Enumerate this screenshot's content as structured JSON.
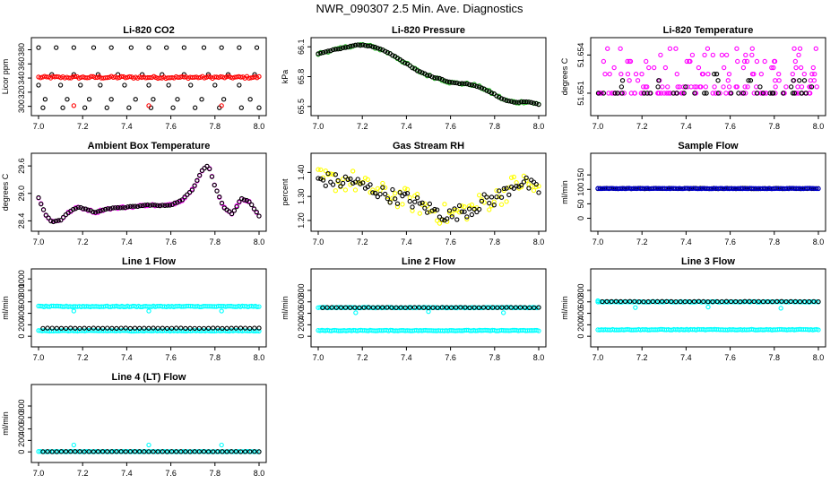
{
  "page": {
    "title": "NWR_090307  2.5 Min. Ave. Diagnostics"
  },
  "chart_data": [
    {
      "type": "scatter",
      "title": "Li-820 CO2",
      "ylabel": "Licor ppm",
      "xlim": [
        7.0,
        8.0
      ],
      "ylim": [
        297,
        387
      ],
      "xticks": [
        "7.0",
        "7.2",
        "7.4",
        "7.6",
        "7.8",
        "8.0"
      ],
      "yticks": [
        300,
        320,
        340,
        360,
        380
      ],
      "series": [
        {
          "color": "#000000",
          "style": "scatter",
          "x": [
            7.0,
            7.08,
            7.16,
            7.25,
            7.33,
            7.42,
            7.5,
            7.58,
            7.66,
            7.75,
            7.83,
            7.91,
            7.99
          ],
          "y": [
            383,
            383,
            383,
            383,
            383,
            383,
            383,
            383,
            383,
            383,
            383,
            383,
            383
          ]
        },
        {
          "color": "#000000",
          "style": "scatter",
          "x": [
            7.06,
            7.16,
            7.27,
            7.36,
            7.47,
            7.56,
            7.66,
            7.77,
            7.86,
            7.98
          ],
          "y": [
            345,
            345,
            345,
            345,
            345,
            345,
            345,
            345,
            345,
            345
          ]
        },
        {
          "color": "#000000",
          "style": "scatter",
          "x": [
            7.0,
            7.1,
            7.19,
            7.28,
            7.39,
            7.5,
            7.59,
            7.69,
            7.8,
            7.91
          ],
          "y": [
            330,
            330,
            330,
            330,
            330,
            330,
            330,
            330,
            330,
            330
          ]
        },
        {
          "color": "#000000",
          "style": "scatter",
          "x": [
            7.03,
            7.13,
            7.23,
            7.33,
            7.44,
            7.52,
            7.63,
            7.74,
            7.84,
            7.96
          ],
          "y": [
            310,
            310,
            310,
            310,
            310,
            310,
            310,
            310,
            310,
            310
          ]
        },
        {
          "color": "#000000",
          "style": "scatter",
          "x": [
            7.02,
            7.11,
            7.21,
            7.31,
            7.41,
            7.51,
            7.61,
            7.71,
            7.82,
            7.92,
            8.0
          ],
          "y": [
            298,
            298,
            298,
            298,
            298,
            298,
            298,
            298,
            298,
            298,
            298
          ]
        },
        {
          "color": "#ff0000",
          "style": "band",
          "x0": 7.0,
          "x1": 8.0,
          "y": 341,
          "spread": 1.5,
          "n": 110
        },
        {
          "color": "#ff0000",
          "style": "scatter",
          "x": [
            7.16,
            7.5,
            7.83
          ],
          "y": [
            301,
            301,
            301
          ]
        }
      ]
    },
    {
      "type": "scatter",
      "title": "Li-820 Pressure",
      "ylabel": "kPa",
      "xlim": [
        7.0,
        8.0
      ],
      "ylim": [
        65.48,
        66.12
      ],
      "xticks": [
        "7.0",
        "7.2",
        "7.4",
        "7.6",
        "7.8",
        "8.0"
      ],
      "yticks": [
        "65.5",
        "65.8",
        "66.1"
      ],
      "ytick_values": [
        65.5,
        65.8,
        66.1
      ],
      "series": [
        {
          "color": "#22bb22",
          "style": "curve",
          "spread": 0.012,
          "x": [
            7.0,
            7.05,
            7.1,
            7.15,
            7.2,
            7.25,
            7.3,
            7.35,
            7.4,
            7.45,
            7.5,
            7.55,
            7.6,
            7.65,
            7.7,
            7.75,
            7.8,
            7.85,
            7.9,
            7.95,
            8.0
          ],
          "y": [
            66.03,
            66.06,
            66.08,
            66.11,
            66.12,
            66.1,
            66.06,
            66.0,
            65.93,
            65.86,
            65.81,
            65.78,
            65.74,
            65.73,
            65.72,
            65.68,
            65.62,
            65.56,
            65.54,
            65.55,
            65.52
          ]
        },
        {
          "color": "#000000",
          "style": "curve",
          "spread": 0.004,
          "x": [
            7.0,
            7.05,
            7.1,
            7.15,
            7.2,
            7.25,
            7.3,
            7.35,
            7.4,
            7.45,
            7.5,
            7.55,
            7.6,
            7.65,
            7.7,
            7.75,
            7.8,
            7.85,
            7.9,
            7.95,
            8.0
          ],
          "y": [
            66.03,
            66.06,
            66.08,
            66.11,
            66.12,
            66.1,
            66.06,
            66.0,
            65.93,
            65.86,
            65.81,
            65.78,
            65.74,
            65.73,
            65.72,
            65.68,
            65.62,
            65.56,
            65.54,
            65.55,
            65.52
          ]
        }
      ]
    },
    {
      "type": "scatter",
      "title": "Li-820 Temperature",
      "ylabel": "degrees C",
      "xlim": [
        7.0,
        8.0
      ],
      "ylim": [
        51.6498,
        51.6548
      ],
      "xticks": [
        "7.0",
        "7.2",
        "7.4",
        "7.6",
        "7.8",
        "8.0"
      ],
      "yticks": [
        "51.651",
        "51.654"
      ],
      "ytick_values": [
        51.651,
        51.654
      ],
      "series": [
        {
          "color": "#ff00ff",
          "style": "levels",
          "x0": 7.0,
          "x1": 8.0,
          "n": 170,
          "levels": [
            51.651,
            51.6515,
            51.652,
            51.6525,
            51.653,
            51.6535,
            51.654,
            51.6545
          ]
        },
        {
          "color": "#000000",
          "style": "levels",
          "x0": 7.0,
          "x1": 8.0,
          "n": 45,
          "levels": [
            51.651,
            51.6515,
            51.652,
            51.6525
          ]
        }
      ]
    },
    {
      "type": "scatter",
      "title": "Ambient Box Temperature",
      "ylabel": "degrees C",
      "xlim": [
        7.0,
        8.0
      ],
      "ylim": [
        28.33,
        29.72
      ],
      "xticks": [
        "7.0",
        "7.2",
        "7.4",
        "7.6",
        "7.8",
        "8.0"
      ],
      "yticks": [
        "28.4",
        "29.0",
        "29.6"
      ],
      "ytick_values": [
        28.4,
        29.0,
        29.6
      ],
      "series": [
        {
          "color": "#ff00ff",
          "style": "curve",
          "spread": 0.02,
          "x": [
            7.0,
            7.03,
            7.06,
            7.1,
            7.14,
            7.18,
            7.22,
            7.26,
            7.3,
            7.35,
            7.4,
            7.45,
            7.5,
            7.55,
            7.6,
            7.65,
            7.7,
            7.74,
            7.77,
            7.8,
            7.84,
            7.88,
            7.92,
            7.96,
            8.0
          ],
          "y": [
            28.9,
            28.55,
            28.38,
            28.42,
            28.6,
            28.7,
            28.65,
            28.58,
            28.66,
            28.68,
            28.7,
            28.72,
            28.75,
            28.73,
            28.75,
            28.85,
            29.1,
            29.5,
            29.62,
            29.15,
            28.7,
            28.55,
            28.9,
            28.8,
            28.5
          ]
        },
        {
          "color": "#000000",
          "style": "curve",
          "spread": 0.01,
          "x": [
            7.0,
            7.03,
            7.06,
            7.1,
            7.14,
            7.18,
            7.22,
            7.26,
            7.3,
            7.35,
            7.4,
            7.45,
            7.5,
            7.55,
            7.6,
            7.65,
            7.7,
            7.74,
            7.77,
            7.8,
            7.84,
            7.88,
            7.92,
            7.96,
            8.0
          ],
          "y": [
            28.9,
            28.55,
            28.38,
            28.42,
            28.6,
            28.7,
            28.65,
            28.58,
            28.66,
            28.68,
            28.7,
            28.72,
            28.75,
            28.73,
            28.75,
            28.85,
            29.1,
            29.5,
            29.62,
            29.15,
            28.7,
            28.55,
            28.9,
            28.8,
            28.5
          ]
        }
      ]
    },
    {
      "type": "scatter",
      "title": "Gas Stream RH",
      "ylabel": "percent",
      "xlim": [
        7.0,
        8.0
      ],
      "ylim": [
        1.185,
        1.45
      ],
      "xticks": [
        "7.0",
        "7.2",
        "7.4",
        "7.6",
        "7.8",
        "8.0"
      ],
      "yticks": [
        "1.20",
        "1.30",
        "1.40"
      ],
      "ytick_values": [
        1.2,
        1.3,
        1.4
      ],
      "series": [
        {
          "color": "#ffff00",
          "style": "curve",
          "spread": 0.045,
          "x": [
            7.0,
            7.05,
            7.1,
            7.15,
            7.2,
            7.25,
            7.3,
            7.35,
            7.4,
            7.45,
            7.5,
            7.55,
            7.6,
            7.65,
            7.7,
            7.75,
            7.8,
            7.85,
            7.9,
            7.95,
            8.0
          ],
          "y": [
            1.37,
            1.37,
            1.36,
            1.37,
            1.34,
            1.33,
            1.31,
            1.3,
            1.29,
            1.27,
            1.25,
            1.23,
            1.22,
            1.24,
            1.25,
            1.28,
            1.29,
            1.32,
            1.36,
            1.35,
            1.32
          ]
        },
        {
          "color": "#000000",
          "style": "curve",
          "spread": 0.03,
          "x": [
            7.0,
            7.05,
            7.1,
            7.15,
            7.2,
            7.25,
            7.3,
            7.35,
            7.4,
            7.45,
            7.5,
            7.55,
            7.6,
            7.65,
            7.7,
            7.75,
            7.8,
            7.85,
            7.9,
            7.95,
            8.0
          ],
          "y": [
            1.37,
            1.37,
            1.36,
            1.37,
            1.34,
            1.33,
            1.31,
            1.3,
            1.29,
            1.27,
            1.25,
            1.23,
            1.22,
            1.24,
            1.25,
            1.28,
            1.29,
            1.32,
            1.36,
            1.35,
            1.32
          ]
        }
      ]
    },
    {
      "type": "scatter",
      "title": "Sample Flow",
      "ylabel": "ml/min",
      "xlim": [
        7.0,
        8.0
      ],
      "ylim": [
        -20,
        200
      ],
      "xticks": [
        "7.0",
        "7.2",
        "7.4",
        "7.6",
        "7.8",
        "8.0"
      ],
      "yticks": [
        0,
        50,
        100,
        150
      ],
      "series": [
        {
          "color": "#000000",
          "style": "band",
          "x0": 7.0,
          "x1": 8.0,
          "y": 103,
          "spread": 1,
          "n": 100
        },
        {
          "color": "#0000cc",
          "style": "band",
          "x0": 7.0,
          "x1": 8.0,
          "y": 103,
          "spread": 0.8,
          "n": 120
        }
      ]
    },
    {
      "type": "scatter",
      "title": "Line 1 Flow",
      "ylabel": "ml/min",
      "xlim": [
        7.0,
        8.0
      ],
      "ylim": [
        -60,
        1050
      ],
      "xticks": [
        "7.0",
        "7.2",
        "7.4",
        "7.6",
        "7.8",
        "8.0"
      ],
      "yticks": [
        0,
        200,
        400,
        600,
        800,
        1000
      ],
      "series": [
        {
          "color": "#00ffff",
          "style": "band",
          "x0": 7.0,
          "x1": 8.0,
          "y": 520,
          "spread": 8,
          "n": 120
        },
        {
          "color": "#00ffff",
          "style": "band",
          "x0": 7.0,
          "x1": 8.0,
          "y": 95,
          "spread": 6,
          "n": 120
        },
        {
          "color": "#00ffff",
          "style": "scatter",
          "x": [
            7.16,
            7.5,
            7.83
          ],
          "y": [
            440,
            440,
            440
          ]
        },
        {
          "color": "#000000",
          "style": "band",
          "x0": 7.02,
          "x1": 8.0,
          "y": 140,
          "spread": 3,
          "n": 48
        }
      ]
    },
    {
      "type": "scatter",
      "title": "Line 2 Flow",
      "ylabel": "ml/min",
      "xlim": [
        7.0,
        8.0
      ],
      "ylim": [
        -60,
        1050
      ],
      "xticks": [
        "7.0",
        "7.2",
        "7.4",
        "7.6",
        "7.8",
        "8.0"
      ],
      "yticks": [
        0,
        200,
        400,
        600,
        800
      ],
      "series": [
        {
          "color": "#00ffff",
          "style": "band",
          "x0": 7.0,
          "x1": 8.0,
          "y": 500,
          "spread": 6,
          "n": 120
        },
        {
          "color": "#00ffff",
          "style": "band",
          "x0": 7.0,
          "x1": 8.0,
          "y": 100,
          "spread": 6,
          "n": 120
        },
        {
          "color": "#00ffff",
          "style": "scatter",
          "x": [
            7.17,
            7.5,
            7.84
          ],
          "y": [
            410,
            430,
            410
          ]
        },
        {
          "color": "#000000",
          "style": "band",
          "x0": 7.02,
          "x1": 8.0,
          "y": 500,
          "spread": 3,
          "n": 48
        }
      ]
    },
    {
      "type": "scatter",
      "title": "Line 3 Flow",
      "ylabel": "ml/min",
      "xlim": [
        7.0,
        8.0
      ],
      "ylim": [
        -60,
        1050
      ],
      "xticks": [
        "7.0",
        "7.2",
        "7.4",
        "7.6",
        "7.8",
        "8.0"
      ],
      "yticks": [
        0,
        200,
        400,
        600,
        800
      ],
      "series": [
        {
          "color": "#00ffff",
          "style": "band",
          "x0": 7.0,
          "x1": 8.0,
          "y": 600,
          "spread": 6,
          "n": 120
        },
        {
          "color": "#00ffff",
          "style": "band",
          "x0": 7.0,
          "x1": 8.0,
          "y": 115,
          "spread": 6,
          "n": 120
        },
        {
          "color": "#00ffff",
          "style": "scatter",
          "x": [
            7.0,
            7.17,
            7.5,
            7.83
          ],
          "y": [
            620,
            500,
            510,
            490
          ]
        },
        {
          "color": "#000000",
          "style": "band",
          "x0": 7.02,
          "x1": 8.0,
          "y": 605,
          "spread": 3,
          "n": 48
        }
      ]
    },
    {
      "type": "scatter",
      "title": "Line 4 (LT) Flow",
      "ylabel": "ml/min",
      "xlim": [
        7.0,
        8.0
      ],
      "ylim": [
        -60,
        1050
      ],
      "xticks": [
        "7.0",
        "7.2",
        "7.4",
        "7.6",
        "7.8",
        "8.0"
      ],
      "yticks": [
        0,
        200,
        400,
        600,
        800
      ],
      "series": [
        {
          "color": "#00ffff",
          "style": "band",
          "x0": 7.0,
          "x1": 8.0,
          "y": 5,
          "spread": 3,
          "n": 120
        },
        {
          "color": "#00ffff",
          "style": "scatter",
          "x": [
            7.16,
            7.5,
            7.83
          ],
          "y": [
            120,
            120,
            120
          ]
        },
        {
          "color": "#000000",
          "style": "band",
          "x0": 7.02,
          "x1": 8.0,
          "y": 5,
          "spread": 2,
          "n": 48
        }
      ]
    }
  ]
}
